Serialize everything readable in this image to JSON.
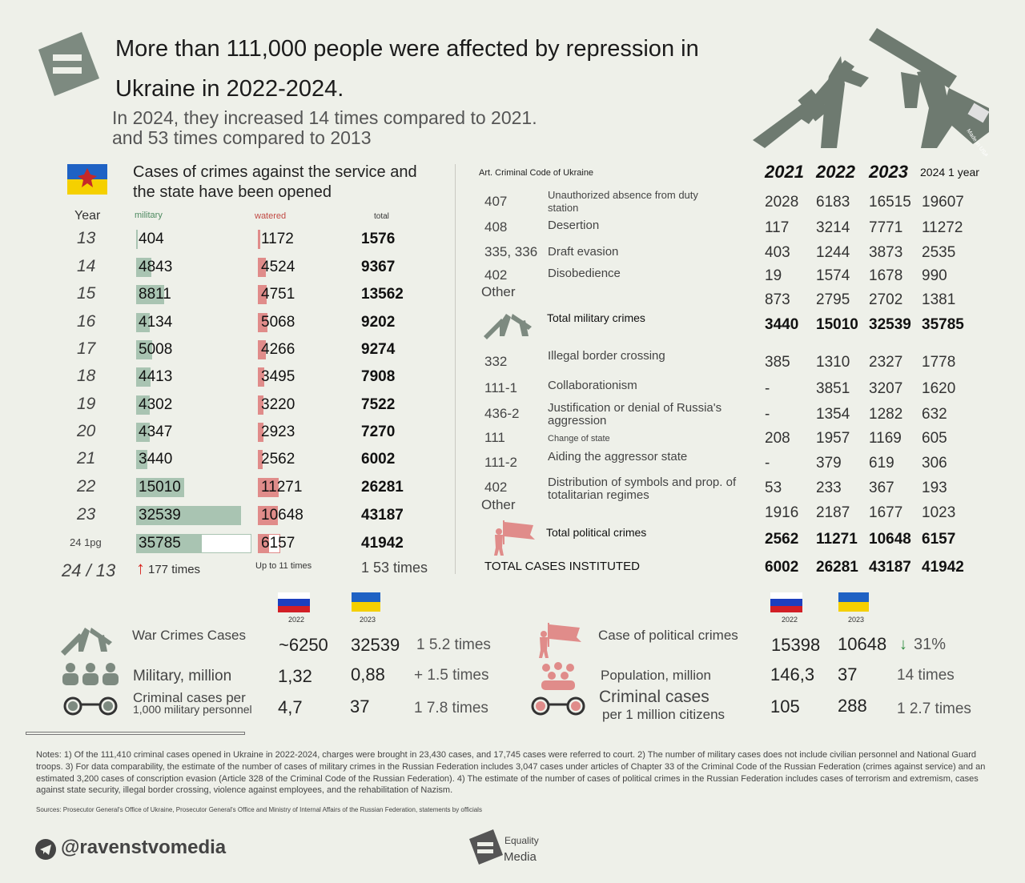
{
  "title": "More than 111,000 people were affected by repression in Ukraine in 2022-2024.",
  "subtitle_line1": "In 2024, they increased 14 times compared to 2021.",
  "subtitle_line2": "and 53 times compared to 2013",
  "gun_badge": "Made in USA",
  "left_table": {
    "heading": "Cases of crimes against the service and the state have been opened",
    "col_year": "Year",
    "col_military": "military",
    "col_watered": "watered",
    "col_total": "total",
    "rows": [
      {
        "year": "13",
        "military": "404",
        "watered": "1172",
        "total": "1576",
        "mil_val": 404,
        "wat_val": 1172
      },
      {
        "year": "14",
        "military": "4843",
        "watered": "4524",
        "total": "9367",
        "mil_val": 4843,
        "wat_val": 4524
      },
      {
        "year": "15",
        "military": "8811",
        "watered": "4751",
        "total": "13562",
        "mil_val": 8811,
        "wat_val": 4751
      },
      {
        "year": "16",
        "military": "4134",
        "watered": "5068",
        "total": "9202",
        "mil_val": 4134,
        "wat_val": 5068
      },
      {
        "year": "17",
        "military": "5008",
        "watered": "4266",
        "total": "9274",
        "mil_val": 5008,
        "wat_val": 4266
      },
      {
        "year": "18",
        "military": "4413",
        "watered": "3495",
        "total": "7908",
        "mil_val": 4413,
        "wat_val": 3495
      },
      {
        "year": "19",
        "military": "4302",
        "watered": "3220",
        "total": "7522",
        "mil_val": 4302,
        "wat_val": 3220
      },
      {
        "year": "20",
        "military": "4347",
        "watered": "2923",
        "total": "7270",
        "mil_val": 4347,
        "wat_val": 2923
      },
      {
        "year": "21",
        "military": "3440",
        "watered": "2562",
        "total": "6002",
        "mil_val": 3440,
        "wat_val": 2562
      },
      {
        "year": "22",
        "military": "15010",
        "watered": "11271",
        "total": "26281",
        "mil_val": 15010,
        "wat_val": 11271
      },
      {
        "year": "23",
        "military": "32539",
        "watered": "10648",
        "total": "43187",
        "mil_val": 32539,
        "wat_val": 10648
      },
      {
        "year": "24 1pg",
        "military": "35785",
        "watered": "6157",
        "total": "41942",
        "mil_val": 35785,
        "wat_val": 6157
      }
    ],
    "ratio_label": "24 / 13",
    "ratio_military": "177 times",
    "ratio_watered": "Up to 11 times",
    "ratio_total": "1 53 times"
  },
  "right_table": {
    "col_art": "Art. Criminal Code of Ukraine",
    "years": [
      "2021",
      "2022",
      "2023"
    ],
    "year_2024": "2024 1 year",
    "military_rows": [
      {
        "art": "407",
        "desc": "Unauthorized absence from duty station",
        "v": [
          "2028",
          "6183",
          "16515",
          "19607"
        ]
      },
      {
        "art": "408",
        "desc": "Desertion",
        "v": [
          "117",
          "3214",
          "7771",
          "11272"
        ]
      },
      {
        "art": "335, 336",
        "desc": "Draft evasion",
        "v": [
          "403",
          "1244",
          "3873",
          "2535"
        ]
      },
      {
        "art": "402",
        "desc": "Disobedience",
        "v": [
          "19",
          "1574",
          "1678",
          "990"
        ]
      },
      {
        "art": "Other",
        "desc": "",
        "v": [
          "873",
          "2795",
          "2702",
          "1381"
        ]
      }
    ],
    "military_total": {
      "label": "Total military crimes",
      "v": [
        "3440",
        "15010",
        "32539",
        "35785"
      ]
    },
    "political_rows": [
      {
        "art": "332",
        "desc": "Illegal border crossing",
        "v": [
          "385",
          "1310",
          "2327",
          "1778"
        ]
      },
      {
        "art": "111-1",
        "desc": "Collaborationism",
        "v": [
          "-",
          "3851",
          "3207",
          "1620"
        ]
      },
      {
        "art": "436-2",
        "desc": "Justification or denial of Russia's aggression",
        "v": [
          "-",
          "1354",
          "1282",
          "632"
        ]
      },
      {
        "art": "111",
        "desc": "Change of state",
        "v": [
          "208",
          "1957",
          "1169",
          "605"
        ]
      },
      {
        "art": "111-2",
        "desc": "Aiding the aggressor state",
        "v": [
          "-",
          "379",
          "619",
          "306"
        ]
      },
      {
        "art": "402",
        "desc": "Distribution of symbols and prop. of totalitarian regimes",
        "v": [
          "53",
          "233",
          "367",
          "193"
        ]
      },
      {
        "art": "Other",
        "desc": "",
        "v": [
          "1916",
          "2187",
          "1677",
          "1023"
        ]
      }
    ],
    "political_total": {
      "label": "Total political crimes",
      "v": [
        "2562",
        "11271",
        "10648",
        "6157"
      ]
    },
    "grand_total": {
      "label": "TOTAL CASES INSTITUTED",
      "v": [
        "6002",
        "26281",
        "43187",
        "41942"
      ]
    }
  },
  "bottom_left": {
    "year_ru": "2022",
    "year_ua": "2023",
    "rows": [
      {
        "label": "War Crimes Cases",
        "ru": "~6250",
        "ua": "32539",
        "cmp": "1 5.2 times"
      },
      {
        "label": "Military, million",
        "ru": "1,32",
        "ua": "0,88",
        "cmp": "+ 1.5 times"
      },
      {
        "label": "Criminal cases per",
        "label2": "1,000 military personnel",
        "ru": "4,7",
        "ua": "37",
        "cmp": "1 7.8 times"
      }
    ]
  },
  "bottom_right": {
    "year_ru": "2022",
    "year_ua": "2023",
    "rows": [
      {
        "label": "Case of political crimes",
        "ru": "15398",
        "ua": "10648",
        "cmp": "31%"
      },
      {
        "label": "Population, million",
        "ru": "146,3",
        "ua": "37",
        "cmp": "14 times"
      },
      {
        "label": "Criminal cases",
        "label2": "per 1 million citizens",
        "ru": "105",
        "ua": "288",
        "cmp": "1 2.7 times"
      }
    ]
  },
  "notes": "Notes: 1) Of the 111,410 criminal cases opened in Ukraine in 2022-2024, charges were brought in 23,430 cases, and 17,745 cases were referred to court. 2) The number of military cases does not include civilian personnel and National Guard troops. 3) For data comparability, the estimate of the number of cases of military crimes in the Russian Federation includes 3,047 cases under articles of Chapter 33 of the Criminal Code of the Russian Federation (crimes against service) and an estimated 3,200 cases of conscription evasion (Article 328 of the Criminal Code of the Russian Federation). 4) The estimate of the number of cases of political crimes in the Russian Federation includes cases of terrorism and extremism, cases against state security, illegal border crossing, violence against employees, and the rehabilitation of Nazism.",
  "sources": "Sources: Prosecutor General's Office of Ukraine, Prosecutor General's Office and Ministry of Internal Affairs of the Russian Federation, statements by officials",
  "footer": {
    "handle": "@ravenstvomedia",
    "brand1": "Equality",
    "brand2": "Media"
  },
  "colors": {
    "military": "#a9c4b2",
    "watered": "#e08c8a",
    "accent": "#6e7a70"
  }
}
